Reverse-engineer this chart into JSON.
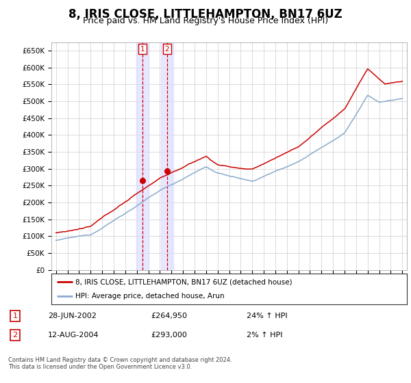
{
  "title": "8, IRIS CLOSE, LITTLEHAMPTON, BN17 6UZ",
  "subtitle": "Price paid vs. HM Land Registry's House Price Index (HPI)",
  "title_fontsize": 12,
  "subtitle_fontsize": 9,
  "ylabel_ticks": [
    "£0",
    "£50K",
    "£100K",
    "£150K",
    "£200K",
    "£250K",
    "£300K",
    "£350K",
    "£400K",
    "£450K",
    "£500K",
    "£550K",
    "£600K",
    "£650K"
  ],
  "ytick_values": [
    0,
    50000,
    100000,
    150000,
    200000,
    250000,
    300000,
    350000,
    400000,
    450000,
    500000,
    550000,
    600000,
    650000
  ],
  "ylim": [
    0,
    675000
  ],
  "xlim_start": 1994.6,
  "xlim_end": 2025.4,
  "sale1_year": 2002.49,
  "sale1_price": 264950,
  "sale2_year": 2004.62,
  "sale2_price": 293000,
  "legend_property": "8, IRIS CLOSE, LITTLEHAMPTON, BN17 6UZ (detached house)",
  "legend_hpi": "HPI: Average price, detached house, Arun",
  "footnote": "Contains HM Land Registry data © Crown copyright and database right 2024.\nThis data is licensed under the Open Government Licence v3.0.",
  "table_rows": [
    {
      "num": "1",
      "date": "28-JUN-2002",
      "price": "£264,950",
      "hpi": "24% ↑ HPI"
    },
    {
      "num": "2",
      "date": "12-AUG-2004",
      "price": "£293,000",
      "hpi": "2% ↑ HPI"
    }
  ],
  "property_line_color": "#cc0000",
  "hpi_line_color": "#88aacc",
  "grid_color": "#cccccc",
  "background_color": "#ffffff"
}
